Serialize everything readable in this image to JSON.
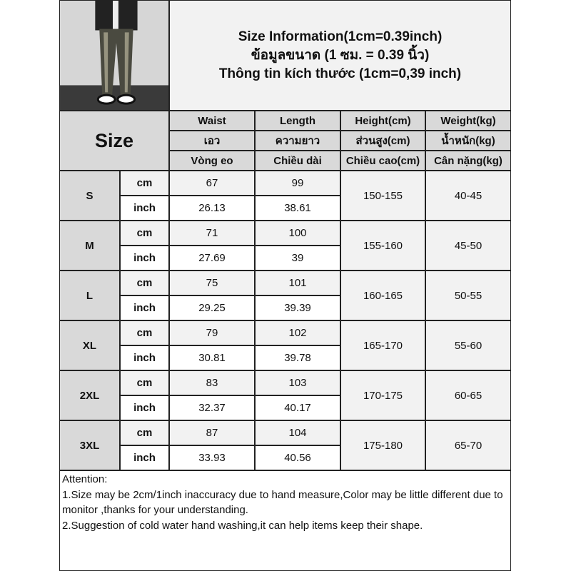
{
  "header": {
    "title_lines": [
      "Size Information(1cm=0.39inch)",
      "ข้อมูลขนาด (1 ซม. = 0.39 นิ้ว)",
      "Thông tin kích thước (1cm=0,39 inch)"
    ],
    "size_label": "Size"
  },
  "columns": [
    {
      "en": "Waist",
      "th": "เอว",
      "vi": "Vòng eo"
    },
    {
      "en": "Length",
      "th": "ความยาว",
      "vi": "Chiều dài"
    },
    {
      "en": "Height(cm)",
      "th": "ส่วนสูง(cm)",
      "vi": "Chiều cao(cm)"
    },
    {
      "en": "Weight(kg)",
      "th": "น้ำหนัก(kg)",
      "vi": "Cân nặng(kg)"
    }
  ],
  "units": {
    "cm": "cm",
    "inch": "inch"
  },
  "rows": [
    {
      "size": "S",
      "waist_cm": "67",
      "length_cm": "99",
      "waist_in": "26.13",
      "length_in": "38.61",
      "height": "150-155",
      "weight": "40-45"
    },
    {
      "size": "M",
      "waist_cm": "71",
      "length_cm": "100",
      "waist_in": "27.69",
      "length_in": "39",
      "height": "155-160",
      "weight": "45-50"
    },
    {
      "size": "L",
      "waist_cm": "75",
      "length_cm": "101",
      "waist_in": "29.25",
      "length_in": "39.39",
      "height": "160-165",
      "weight": "50-55"
    },
    {
      "size": "XL",
      "waist_cm": "79",
      "length_cm": "102",
      "waist_in": "30.81",
      "length_in": "39.78",
      "height": "165-170",
      "weight": "55-60"
    },
    {
      "size": "2XL",
      "waist_cm": "83",
      "length_cm": "103",
      "waist_in": "32.37",
      "length_in": "40.17",
      "height": "170-175",
      "weight": "60-65"
    },
    {
      "size": "3XL",
      "waist_cm": "87",
      "length_cm": "104",
      "waist_in": "33.93",
      "length_in": "40.56",
      "height": "175-180",
      "weight": "65-70"
    }
  ],
  "notes": {
    "heading": "Attention:",
    "items": [
      "1.Size may be 2cm/1inch inaccuracy due to hand measure,Color may be little different due to monitor ,thanks for your understanding.",
      "2.Suggestion of cold water hand washing,it can help items keep their shape."
    ]
  },
  "colors": {
    "header_bg": "#d9d9d9",
    "light_bg": "#f2f2f2",
    "border": "#222222"
  }
}
